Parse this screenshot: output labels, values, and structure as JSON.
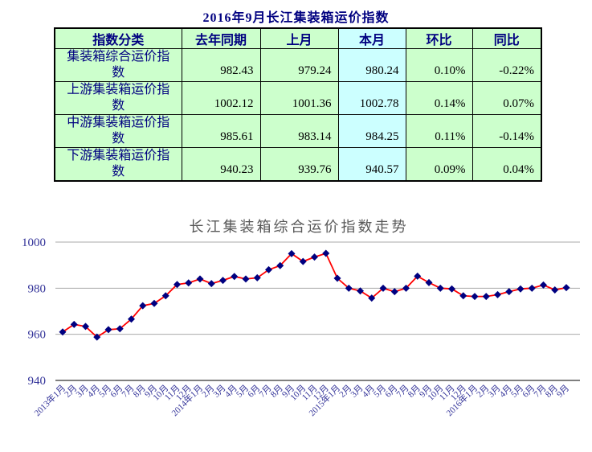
{
  "page_title": "2016年9月长江集装箱运价指数",
  "table": {
    "headers": [
      "指数分类",
      "去年同期",
      "上月",
      "本月",
      "环比",
      "同比"
    ],
    "rows": [
      {
        "label": "集装箱综合运价指数",
        "last_year": "982.43",
        "last_month": "979.24",
        "this_month": "980.24",
        "mom": "0.10%",
        "yoy": "-0.22%"
      },
      {
        "label": "上游集装箱运价指数",
        "last_year": "1002.12",
        "last_month": "1001.36",
        "this_month": "1002.78",
        "mom": "0.14%",
        "yoy": "0.07%"
      },
      {
        "label": "中游集装箱运价指数",
        "last_year": "985.61",
        "last_month": "983.14",
        "this_month": "984.25",
        "mom": "0.11%",
        "yoy": "-0.14%"
      },
      {
        "label": "下游集装箱运价指数",
        "last_year": "940.23",
        "last_month": "939.76",
        "this_month": "940.57",
        "mom": "0.09%",
        "yoy": "0.04%"
      }
    ]
  },
  "chart_data": {
    "type": "line",
    "title": "长江集装箱综合运价指数走势",
    "x": [
      "2013年1月",
      "2月",
      "3月",
      "4月",
      "5月",
      "6月",
      "7月",
      "8月",
      "9月",
      "10月",
      "11月",
      "12月",
      "2014年1月",
      "2月",
      "3月",
      "4月",
      "5月",
      "6月",
      "7月",
      "8月",
      "9月",
      "10月",
      "11月",
      "12月",
      "2015年1月",
      "2月",
      "3月",
      "4月",
      "5月",
      "6月",
      "7月",
      "8月",
      "9月",
      "10月",
      "11月",
      "12月",
      "2016年1月",
      "2月",
      "3月",
      "4月",
      "5月",
      "6月",
      "7月",
      "8月",
      "9月"
    ],
    "series": [
      {
        "name": "集装箱综合运价指数",
        "values": [
          961.0,
          964.3,
          963.4,
          958.8,
          962.0,
          962.4,
          966.6,
          972.4,
          973.4,
          976.7,
          981.6,
          982.3,
          984.0,
          982.0,
          983.4,
          985.1,
          984.0,
          984.5,
          988.0,
          989.8,
          995.0,
          991.6,
          993.5,
          995.1,
          984.3,
          980.0,
          978.8,
          975.7,
          980.0,
          978.5,
          980.0,
          985.2,
          982.43,
          980.0,
          979.7,
          976.7,
          976.4,
          976.4,
          977.2,
          978.5,
          979.7,
          980.0,
          981.4,
          979.24,
          980.24
        ]
      }
    ],
    "ylim": [
      940,
      1000
    ],
    "yticks": [
      1000,
      980,
      960,
      940
    ],
    "grid": true,
    "legend_position": "none"
  },
  "colors": {
    "title_navy": "#000080",
    "table_green": "#ccffcc",
    "table_cyan": "#ccffff",
    "table_border": "#000000",
    "line_red": "#ff0000",
    "marker_navy": "#000080",
    "grid_gray": "#a9a9a9",
    "axis_gray": "#7f7f7f",
    "axis_label_blue": "#333399",
    "chart_title_gray": "#595959"
  }
}
